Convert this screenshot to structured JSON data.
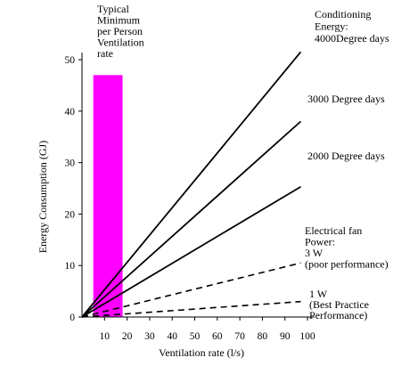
{
  "chart_data": {
    "type": "line",
    "title": "",
    "xlabel": "Ventilation rate (l/s)",
    "ylabel": "Energy Consumption (GJ)",
    "xlim": [
      0,
      100
    ],
    "ylim": [
      0,
      50
    ],
    "x_ticks": [
      10,
      20,
      30,
      40,
      50,
      60,
      70,
      80,
      90,
      100
    ],
    "y_ticks": [
      0,
      10,
      20,
      30,
      40,
      50
    ],
    "grid": false,
    "legend": "none",
    "highlight_band": {
      "x": [
        5,
        18
      ],
      "y": [
        0,
        47
      ],
      "color": "#ff00ff",
      "label_lines": [
        "Typical",
        "Minimum",
        "per Person",
        "Ventilation",
        "rate"
      ]
    },
    "series": [
      {
        "x": [
          0,
          97
        ],
        "y": [
          0,
          51.5
        ],
        "style": "solid",
        "color": "#000000",
        "label_lines": [
          "Conditioning",
          "Energy:",
          "4000Degree days"
        ]
      },
      {
        "x": [
          0,
          97
        ],
        "y": [
          0,
          38
        ],
        "style": "solid",
        "color": "#000000",
        "label_lines": [
          "3000 Degree days"
        ]
      },
      {
        "x": [
          0,
          97
        ],
        "y": [
          0,
          25.3
        ],
        "style": "solid",
        "color": "#000000",
        "label_lines": [
          "2000 Degree days"
        ]
      },
      {
        "x": [
          0,
          97
        ],
        "y": [
          0,
          10.5
        ],
        "style": "dashed",
        "color": "#000000",
        "label_lines": [
          "Electrical fan",
          "Power:",
          "3 W",
          "(poor performance)"
        ]
      },
      {
        "x": [
          0,
          97
        ],
        "y": [
          0,
          3
        ],
        "style": "dashed",
        "color": "#000000",
        "label_lines": [
          "1 W",
          "(Best Practice",
          "Performance)"
        ]
      }
    ]
  }
}
